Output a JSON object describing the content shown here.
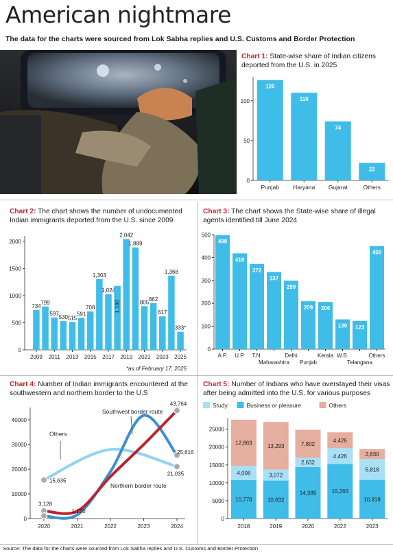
{
  "header": {
    "title": "American nightmare",
    "subtitle": "The data for the charts were sourced from Lok Sabha replies and U.S. Customs and Border Protection"
  },
  "footer": {
    "source": "Source: The data for the charts were sourced from Lok Sabha replies and U.S. Customs and Border Protection"
  },
  "colors": {
    "bar": "#3fbde8",
    "accent_red": "#c0272d",
    "line_red": "#b8262e",
    "line_blue": "#3b8fd1",
    "line_light": "#8fd3f0",
    "study": "#a8e0f7",
    "business": "#3fbde8",
    "others": "#e6ae9e"
  },
  "chart_data": [
    {
      "id": "chart1",
      "type": "bar",
      "label": "Chart 1:",
      "title": "State-wise share of Indian citizens deported from the U.S. in 2025",
      "categories": [
        "Punjab",
        "Haryana",
        "Gujarat",
        "Others"
      ],
      "values": [
        126,
        110,
        74,
        22
      ],
      "data_labels": [
        "126",
        "110",
        "74",
        "22"
      ],
      "ylim": [
        0,
        130
      ],
      "yticks": [
        "0",
        "50",
        "100"
      ],
      "grid": false
    },
    {
      "id": "chart2",
      "type": "bar",
      "label": "Chart 2:",
      "title": "The chart shows the number of undocumented Indian immigrants deported from the U.S. since 2009",
      "categories": [
        "2009",
        "2010",
        "2011",
        "2012",
        "2013",
        "2014",
        "2015",
        "2016",
        "2017",
        "2018",
        "2019",
        "2020",
        "2021",
        "2022",
        "2023",
        "2024",
        "2025"
      ],
      "values": [
        734,
        799,
        597,
        530,
        515,
        591,
        708,
        1303,
        1024,
        1180,
        2042,
        1889,
        805,
        862,
        617,
        1368,
        333
      ],
      "data_labels": [
        "734",
        "799",
        "597",
        "530",
        "515",
        "591",
        "708",
        "1,303",
        "1,024",
        "1,180",
        "2,042",
        "1,889",
        "805",
        "862",
        "617",
        "1,368",
        "333*"
      ],
      "xticks": [
        "2009",
        "2011",
        "2013",
        "2015",
        "2017",
        "2019",
        "2021",
        "2023",
        "2025"
      ],
      "yticks": [
        "0",
        "500",
        "1000",
        "1500",
        "2000"
      ],
      "ylim": [
        0,
        2100
      ],
      "note": "*as of February 17, 2025"
    },
    {
      "id": "chart3",
      "type": "bar",
      "label": "Chart 3:",
      "title": "The chart shows the State-wise share of illegal agents identified till June 2024",
      "categories": [
        "A.P.",
        "U.P.",
        "T.N.",
        "Maharashtra",
        "Delhi",
        "Punjab",
        "Kerala",
        "W.B.",
        "Telangana",
        "Others"
      ],
      "values": [
        498,
        418,
        372,
        337,
        299,
        209,
        206,
        130,
        123,
        450
      ],
      "data_labels": [
        "498",
        "418",
        "372",
        "337",
        "299",
        "209",
        "206",
        "130",
        "123",
        "450"
      ],
      "yticks": [
        "0",
        "100",
        "200",
        "300",
        "400",
        "500"
      ],
      "ylim": [
        0,
        500
      ]
    },
    {
      "id": "chart4",
      "type": "line",
      "label": "Chart 4:",
      "title": "Number of Indian immigrants encountered at the southwestern and northern border to the U.S",
      "x": [
        "2020",
        "2021",
        "2022",
        "2023",
        "2024"
      ],
      "series": [
        {
          "name": "Southwest border route",
          "points": [
            [
              2020,
              1120
            ],
            [
              2021,
              1500
            ],
            [
              2022,
              19000
            ],
            [
              2023,
              41770
            ],
            [
              2024,
              25616
            ]
          ],
          "labels": [
            "25,616"
          ]
        },
        {
          "name": "Northern border route",
          "points": [
            [
              2020,
              3128
            ],
            [
              2021,
              3000
            ],
            [
              2022,
              17000
            ],
            [
              2023,
              30010
            ],
            [
              2024,
              43764
            ]
          ],
          "labels": [
            "3,128",
            "43,764"
          ]
        },
        {
          "name": "Others",
          "points": [
            [
              2020,
              15635
            ],
            [
              2022,
              28000
            ],
            [
              2024,
              21035
            ]
          ],
          "labels": [
            "15,635",
            "21,035"
          ]
        }
      ],
      "extra_labels": [
        "1,120"
      ],
      "yticks": [
        "0",
        "10000",
        "20000",
        "30000",
        "40000"
      ],
      "ylim": [
        0,
        45000
      ]
    },
    {
      "id": "chart5",
      "type": "bar",
      "stacked": true,
      "label": "Chart 5:",
      "title": "Number of Indians who have overstayed their visas after being admitted into the U.S. for various purposes",
      "categories": [
        "2018",
        "2019",
        "2020",
        "2022",
        "2023"
      ],
      "series": [
        {
          "name": "Business or pleasure",
          "values": [
            10770,
            10632,
            14389,
            15266,
            10818
          ],
          "labels": [
            "10,770",
            "10,632",
            "14,389",
            "15,266",
            "10,818"
          ]
        },
        {
          "name": "Study",
          "values": [
            4008,
            3072,
            2632,
            4426,
            5818
          ],
          "labels": [
            "4,008",
            "3,072",
            "2,632",
            "4,426",
            "5,818"
          ]
        },
        {
          "name": "Others",
          "values": [
            12863,
            13293,
            7802,
            4426,
            2830
          ],
          "labels": [
            "12,863",
            "13,293",
            "7,802",
            "4,426",
            "2,830"
          ]
        }
      ],
      "legend": [
        "Study",
        "Business or pleasure",
        "Others"
      ],
      "yticks": [
        "0",
        "5000",
        "10000",
        "15000",
        "20000",
        "25000"
      ],
      "ylim": [
        0,
        28000
      ]
    }
  ]
}
